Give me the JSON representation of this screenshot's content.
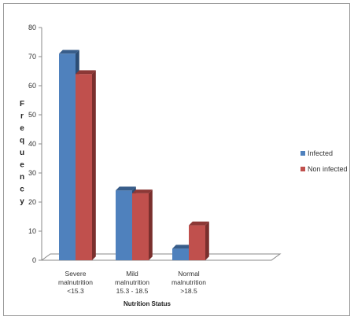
{
  "chart_data": {
    "type": "bar",
    "title": "",
    "xlabel": "Nutrition Status",
    "ylabel": "Frequency",
    "ylim": [
      0,
      80
    ],
    "yticks": [
      0,
      10,
      20,
      30,
      40,
      50,
      60,
      70,
      80
    ],
    "categories": [
      [
        "Severe",
        "malnutrition",
        "<15.3"
      ],
      [
        "Mild",
        "malnutrition",
        "15.3 - 18.5"
      ],
      [
        "Normal",
        "malnutrition",
        ">18.5"
      ]
    ],
    "series": [
      {
        "name": "Infected",
        "values": [
          71,
          24,
          4
        ],
        "color": "#4f81bd",
        "top": "#385d8a",
        "side": "#2c4d75"
      },
      {
        "name": "Non infected",
        "values": [
          64,
          23,
          12
        ],
        "color": "#c0504d",
        "top": "#8c3836",
        "side": "#7a2f2d"
      }
    ],
    "legend_position": "right",
    "grid": false
  }
}
